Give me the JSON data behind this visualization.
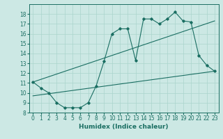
{
  "xlabel": "Humidex (Indice chaleur)",
  "bg_color": "#cce8e4",
  "grid_color": "#aad4cc",
  "line_color": "#1a6e62",
  "xlim": [
    -0.5,
    23.5
  ],
  "ylim": [
    8,
    19
  ],
  "xticks": [
    0,
    1,
    2,
    3,
    4,
    5,
    6,
    7,
    8,
    9,
    10,
    11,
    12,
    13,
    14,
    15,
    16,
    17,
    18,
    19,
    20,
    21,
    22,
    23
  ],
  "yticks": [
    8,
    9,
    10,
    11,
    12,
    13,
    14,
    15,
    16,
    17,
    18
  ],
  "curve1_x": [
    0,
    1,
    2,
    3,
    4,
    5,
    6,
    7,
    8,
    9,
    10,
    11,
    12,
    13,
    14,
    15,
    16,
    17,
    18,
    19,
    20,
    21,
    22,
    23
  ],
  "curve1_y": [
    11.1,
    10.5,
    10.0,
    9.0,
    8.5,
    8.5,
    8.5,
    9.0,
    10.7,
    13.2,
    16.0,
    16.5,
    16.5,
    13.3,
    17.5,
    17.5,
    17.0,
    17.5,
    18.2,
    17.3,
    17.2,
    13.8,
    12.8,
    12.2
  ],
  "line2_x": [
    0,
    23
  ],
  "line2_y": [
    11.1,
    17.3
  ],
  "line3_x": [
    0,
    23
  ],
  "line3_y": [
    9.7,
    12.2
  ],
  "xlabel_fontsize": 6.5,
  "tick_fontsize": 5.5
}
